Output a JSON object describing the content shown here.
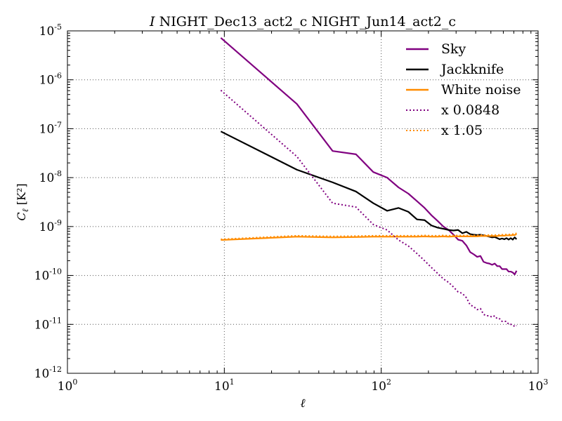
{
  "chart_data": {
    "type": "line",
    "title": "I NIGHT_Dec13_act2_c NIGHT_Jun14_act2_c",
    "xlabel": "ℓ",
    "ylabel": "Cℓ [K²]",
    "x_scale": "log",
    "y_scale": "log",
    "xlim": [
      1,
      1000
    ],
    "ylim": [
      1e-12,
      1e-05
    ],
    "xticks": [
      {
        "value": 1,
        "base": "10",
        "exp": "0"
      },
      {
        "value": 10,
        "base": "10",
        "exp": "1"
      },
      {
        "value": 100,
        "base": "10",
        "exp": "2"
      },
      {
        "value": 1000,
        "base": "10",
        "exp": "3"
      }
    ],
    "yticks": [
      {
        "value": 1e-12,
        "base": "10",
        "exp": "-12"
      },
      {
        "value": 1e-11,
        "base": "10",
        "exp": "-11"
      },
      {
        "value": 1e-10,
        "base": "10",
        "exp": "-10"
      },
      {
        "value": 1e-09,
        "base": "10",
        "exp": "-9"
      },
      {
        "value": 1e-08,
        "base": "10",
        "exp": "-8"
      },
      {
        "value": 1e-07,
        "base": "10",
        "exp": "-7"
      },
      {
        "value": 1e-06,
        "base": "10",
        "exp": "-6"
      },
      {
        "value": 1e-05,
        "base": "10",
        "exp": "-5"
      }
    ],
    "grid": true,
    "legend_position": "top-right",
    "series": [
      {
        "name": "Sky",
        "color": "#800080",
        "style": "solid",
        "x": [
          9.5,
          29,
          49,
          69,
          89,
          109,
          129,
          149,
          169,
          189,
          209,
          229,
          249,
          269,
          289,
          309,
          329,
          349,
          369,
          389,
          409,
          429,
          449,
          469,
          489,
          509,
          529,
          549,
          569,
          589,
          609,
          629,
          649,
          669,
          689,
          709,
          729
        ],
        "y": [
          7.2e-06,
          3.2e-07,
          3.5e-08,
          3e-08,
          1.3e-08,
          1e-08,
          6.3e-09,
          4.7e-09,
          3.3e-09,
          2.4e-09,
          1.7e-09,
          1.3e-09,
          1e-09,
          8.5e-10,
          6.8e-10,
          5.4e-10,
          5.1e-10,
          4.1e-10,
          3e-10,
          2.7e-10,
          2.4e-10,
          2.5e-10,
          1.9e-10,
          1.8e-10,
          1.75e-10,
          1.65e-10,
          1.75e-10,
          1.55e-10,
          1.55e-10,
          1.35e-10,
          1.35e-10,
          1.35e-10,
          1.2e-10,
          1.2e-10,
          1.15e-10,
          1.05e-10,
          1.25e-10
        ]
      },
      {
        "name": "Jackknife",
        "color": "#000000",
        "style": "solid",
        "x": [
          9.5,
          29,
          49,
          69,
          89,
          109,
          129,
          149,
          169,
          189,
          209,
          229,
          249,
          269,
          289,
          309,
          329,
          349,
          369,
          389,
          409,
          429,
          449,
          469,
          489,
          509,
          529,
          549,
          569,
          589,
          609,
          629,
          649,
          669,
          689,
          709,
          729
        ],
        "y": [
          8.8e-08,
          1.45e-08,
          8e-09,
          5.2e-09,
          3e-09,
          2.1e-09,
          2.4e-09,
          2e-09,
          1.4e-09,
          1.35e-09,
          1.05e-09,
          9.5e-10,
          9e-10,
          8.5e-10,
          8.3e-10,
          8.5e-10,
          7.3e-10,
          7.8e-10,
          7e-10,
          6.8e-10,
          6.7e-10,
          6.8e-10,
          6.6e-10,
          6.4e-10,
          6.2e-10,
          6e-10,
          6.1e-10,
          5.8e-10,
          5.5e-10,
          5.7e-10,
          5.5e-10,
          5.8e-10,
          5.4e-10,
          5.8e-10,
          5.4e-10,
          6e-10,
          5.5e-10
        ]
      },
      {
        "name": "White noise",
        "color": "#ff8c00",
        "style": "solid",
        "x": [
          9.5,
          29,
          49,
          69,
          89,
          109,
          129,
          149,
          169,
          189,
          209,
          229,
          249,
          269,
          289,
          309,
          329,
          349,
          369,
          389,
          409,
          429,
          449,
          469,
          489,
          509,
          529,
          549,
          569,
          589,
          609,
          629,
          649,
          669,
          689,
          709,
          729
        ],
        "y": [
          5.3e-10,
          6.2e-10,
          6e-10,
          6.1e-10,
          6.2e-10,
          6.2e-10,
          6.2e-10,
          6.2e-10,
          6.2e-10,
          6.3e-10,
          6.2e-10,
          6.2e-10,
          6.3e-10,
          6.2e-10,
          6.3e-10,
          6.3e-10,
          6.3e-10,
          6.3e-10,
          6.3e-10,
          6.3e-10,
          6.3e-10,
          6.4e-10,
          6.4e-10,
          6.4e-10,
          6.4e-10,
          6.4e-10,
          6.4e-10,
          6.4e-10,
          6.5e-10,
          6.5e-10,
          6.5e-10,
          6.6e-10,
          6.6e-10,
          6.6e-10,
          6.7e-10,
          6.7e-10,
          7e-10
        ]
      },
      {
        "name": "x 0.0848",
        "color": "#800080",
        "style": "dotted",
        "x": [
          9.5,
          29,
          49,
          69,
          89,
          109,
          129,
          149,
          169,
          189,
          209,
          229,
          249,
          269,
          289,
          309,
          329,
          349,
          369,
          389,
          409,
          429,
          449,
          469,
          489,
          509,
          529,
          549,
          569,
          589,
          609,
          629,
          649,
          669,
          689,
          709,
          729
        ],
        "y": [
          6.1e-07,
          2.7e-08,
          3e-09,
          2.5e-09,
          1.1e-09,
          8.5e-10,
          5.3e-10,
          4e-10,
          2.8e-10,
          2e-10,
          1.45e-10,
          1.1e-10,
          8.5e-11,
          7.2e-11,
          5.8e-11,
          4.6e-11,
          4.3e-11,
          3.5e-11,
          2.5e-11,
          2.3e-11,
          2e-11,
          2.1e-11,
          1.6e-11,
          1.5e-11,
          1.5e-11,
          1.4e-11,
          1.5e-11,
          1.3e-11,
          1.3e-11,
          1.15e-11,
          1.15e-11,
          1.15e-11,
          1e-11,
          1e-11,
          9.8e-12,
          9e-12,
          9.5e-12
        ]
      },
      {
        "name": "x 1.05",
        "color": "#ff8c00",
        "style": "dotted",
        "x": [
          9.5,
          29,
          49,
          69,
          89,
          109,
          129,
          149,
          169,
          189,
          209,
          229,
          249,
          269,
          289,
          309,
          329,
          349,
          369,
          389,
          409,
          429,
          449,
          469,
          489,
          509,
          529,
          549,
          569,
          589,
          609,
          629,
          649,
          669,
          689,
          709,
          729
        ],
        "y": [
          5.5e-10,
          6.5e-10,
          6.3e-10,
          6.4e-10,
          6.5e-10,
          6.5e-10,
          6.5e-10,
          6.5e-10,
          6.5e-10,
          6.6e-10,
          6.5e-10,
          6.5e-10,
          6.6e-10,
          6.5e-10,
          6.6e-10,
          6.6e-10,
          6.6e-10,
          6.6e-10,
          6.6e-10,
          6.6e-10,
          6.6e-10,
          6.7e-10,
          6.7e-10,
          6.7e-10,
          6.7e-10,
          6.7e-10,
          6.7e-10,
          6.7e-10,
          6.8e-10,
          6.8e-10,
          6.8e-10,
          6.9e-10,
          6.9e-10,
          6.9e-10,
          7e-10,
          7e-10,
          7.35e-10
        ]
      }
    ]
  }
}
